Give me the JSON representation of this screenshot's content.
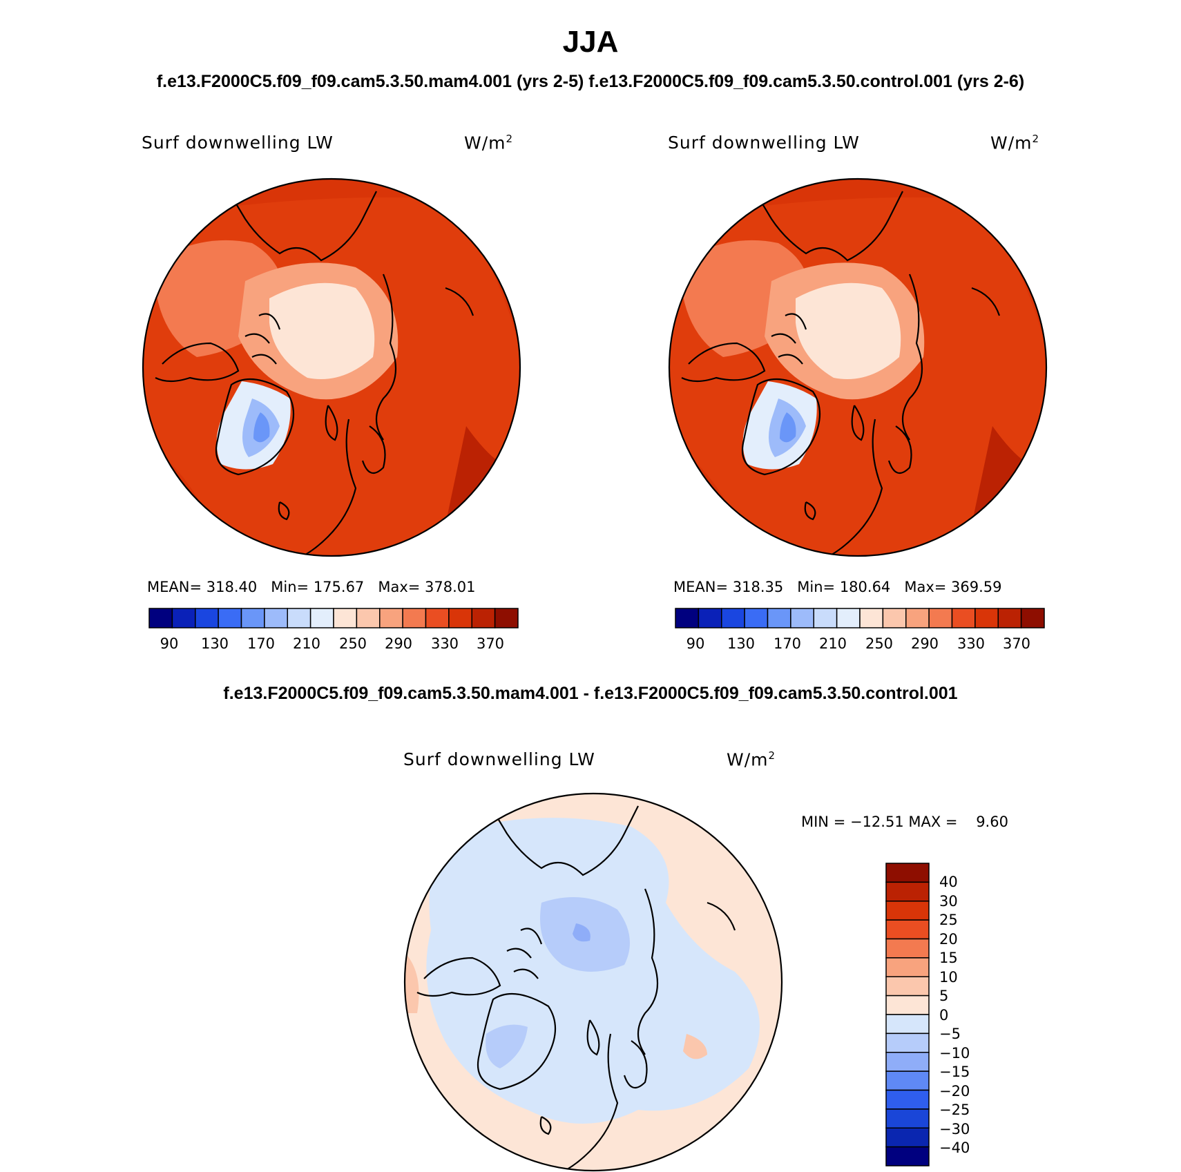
{
  "title": "JJA",
  "subtitle_top": "f.e13.F2000C5.f09_f09.cam5.3.50.mam4.001 (yrs 2-5) f.e13.F2000C5.f09_f09.cam5.3.50.control.001 (yrs 2-6)",
  "subtitle_diff": "f.e13.F2000C5.f09_f09.cam5.3.50.mam4.001 - f.e13.F2000C5.f09_f09.cam5.3.50.control.001",
  "panels": [
    {
      "variable": "Surf downwelling LW",
      "units": "W/m",
      "units_sup": "2",
      "stats": {
        "mean_label": "MEAN=",
        "mean": "318.40",
        "min_label": "Min=",
        "min": "175.67",
        "max_label": "Max=",
        "max": "378.01"
      },
      "colorbar_ticks": [
        "90",
        "130",
        "170",
        "210",
        "250",
        "290",
        "330",
        "370"
      ]
    },
    {
      "variable": "Surf downwelling LW",
      "units": "W/m",
      "units_sup": "2",
      "stats": {
        "mean_label": "MEAN=",
        "mean": "318.35",
        "min_label": "Min=",
        "min": "180.64",
        "max_label": "Max=",
        "max": "369.59"
      },
      "colorbar_ticks": [
        "90",
        "130",
        "170",
        "210",
        "250",
        "290",
        "330",
        "370"
      ]
    },
    {
      "variable": "Surf downwelling LW",
      "units": "W/m",
      "units_sup": "2",
      "stats_line": "MIN = −12.51 MAX =    9.60",
      "colorbar_ticks": [
        "40",
        "30",
        "25",
        "20",
        "15",
        "10",
        "5",
        "0",
        "−5",
        "−10",
        "−15",
        "−20",
        "−25",
        "−30",
        "−40"
      ]
    }
  ],
  "abs_colors": [
    "#00007f",
    "#0a21b8",
    "#1a46e0",
    "#3a6cf5",
    "#6a96f8",
    "#9dbbfa",
    "#c9dcfb",
    "#e3eefc",
    "#fde5d6",
    "#fbc7ad",
    "#f8a37e",
    "#f37a50",
    "#ea4e22",
    "#d93508",
    "#bb2203",
    "#8e0e00"
  ],
  "diff_colors": [
    "#8e0e00",
    "#bb2203",
    "#d93508",
    "#ea4e22",
    "#f37a50",
    "#f8a37e",
    "#fbc7ad",
    "#fde5d6",
    "#d6e6fb",
    "#b6ccfa",
    "#8fadf8",
    "#5f89f5",
    "#2f5eee",
    "#1a46d8",
    "#0a26b0",
    "#00007f"
  ]
}
